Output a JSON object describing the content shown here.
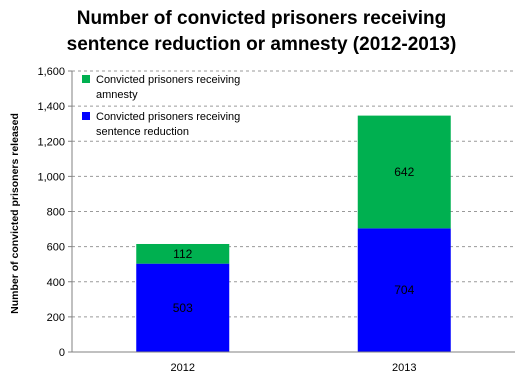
{
  "chart_data": {
    "type": "bar",
    "stacked": true,
    "title_lines": [
      "Number of convicted prisoners receiving",
      "sentence reduction or amnesty (2012-2013)"
    ],
    "xlabel": "",
    "ylabel": "Number of convicted prisoners released",
    "ylim": [
      0,
      1600
    ],
    "yticks": [
      0,
      200,
      400,
      600,
      800,
      1000,
      1200,
      1400,
      1600
    ],
    "ytick_labels": [
      "0",
      "200",
      "400",
      "600",
      "800",
      "1,000",
      "1,200",
      "1,400",
      "1,600"
    ],
    "grid": true,
    "legend_position": "top-left",
    "categories": [
      "2012",
      "2013"
    ],
    "series": [
      {
        "name": "Convicted prisoners receiving sentence reduction",
        "legend_lines": [
          "Convicted prisoners receiving",
          "sentence reduction"
        ],
        "color": "#0000ff",
        "values": [
          503,
          704
        ],
        "labels": [
          "503",
          "704"
        ]
      },
      {
        "name": "Convicted prisoners receiving amnesty",
        "legend_lines": [
          "Convicted prisoners receiving",
          "amnesty"
        ],
        "color": "#00b050",
        "values": [
          112,
          642
        ],
        "labels": [
          "112",
          "642"
        ]
      }
    ]
  }
}
